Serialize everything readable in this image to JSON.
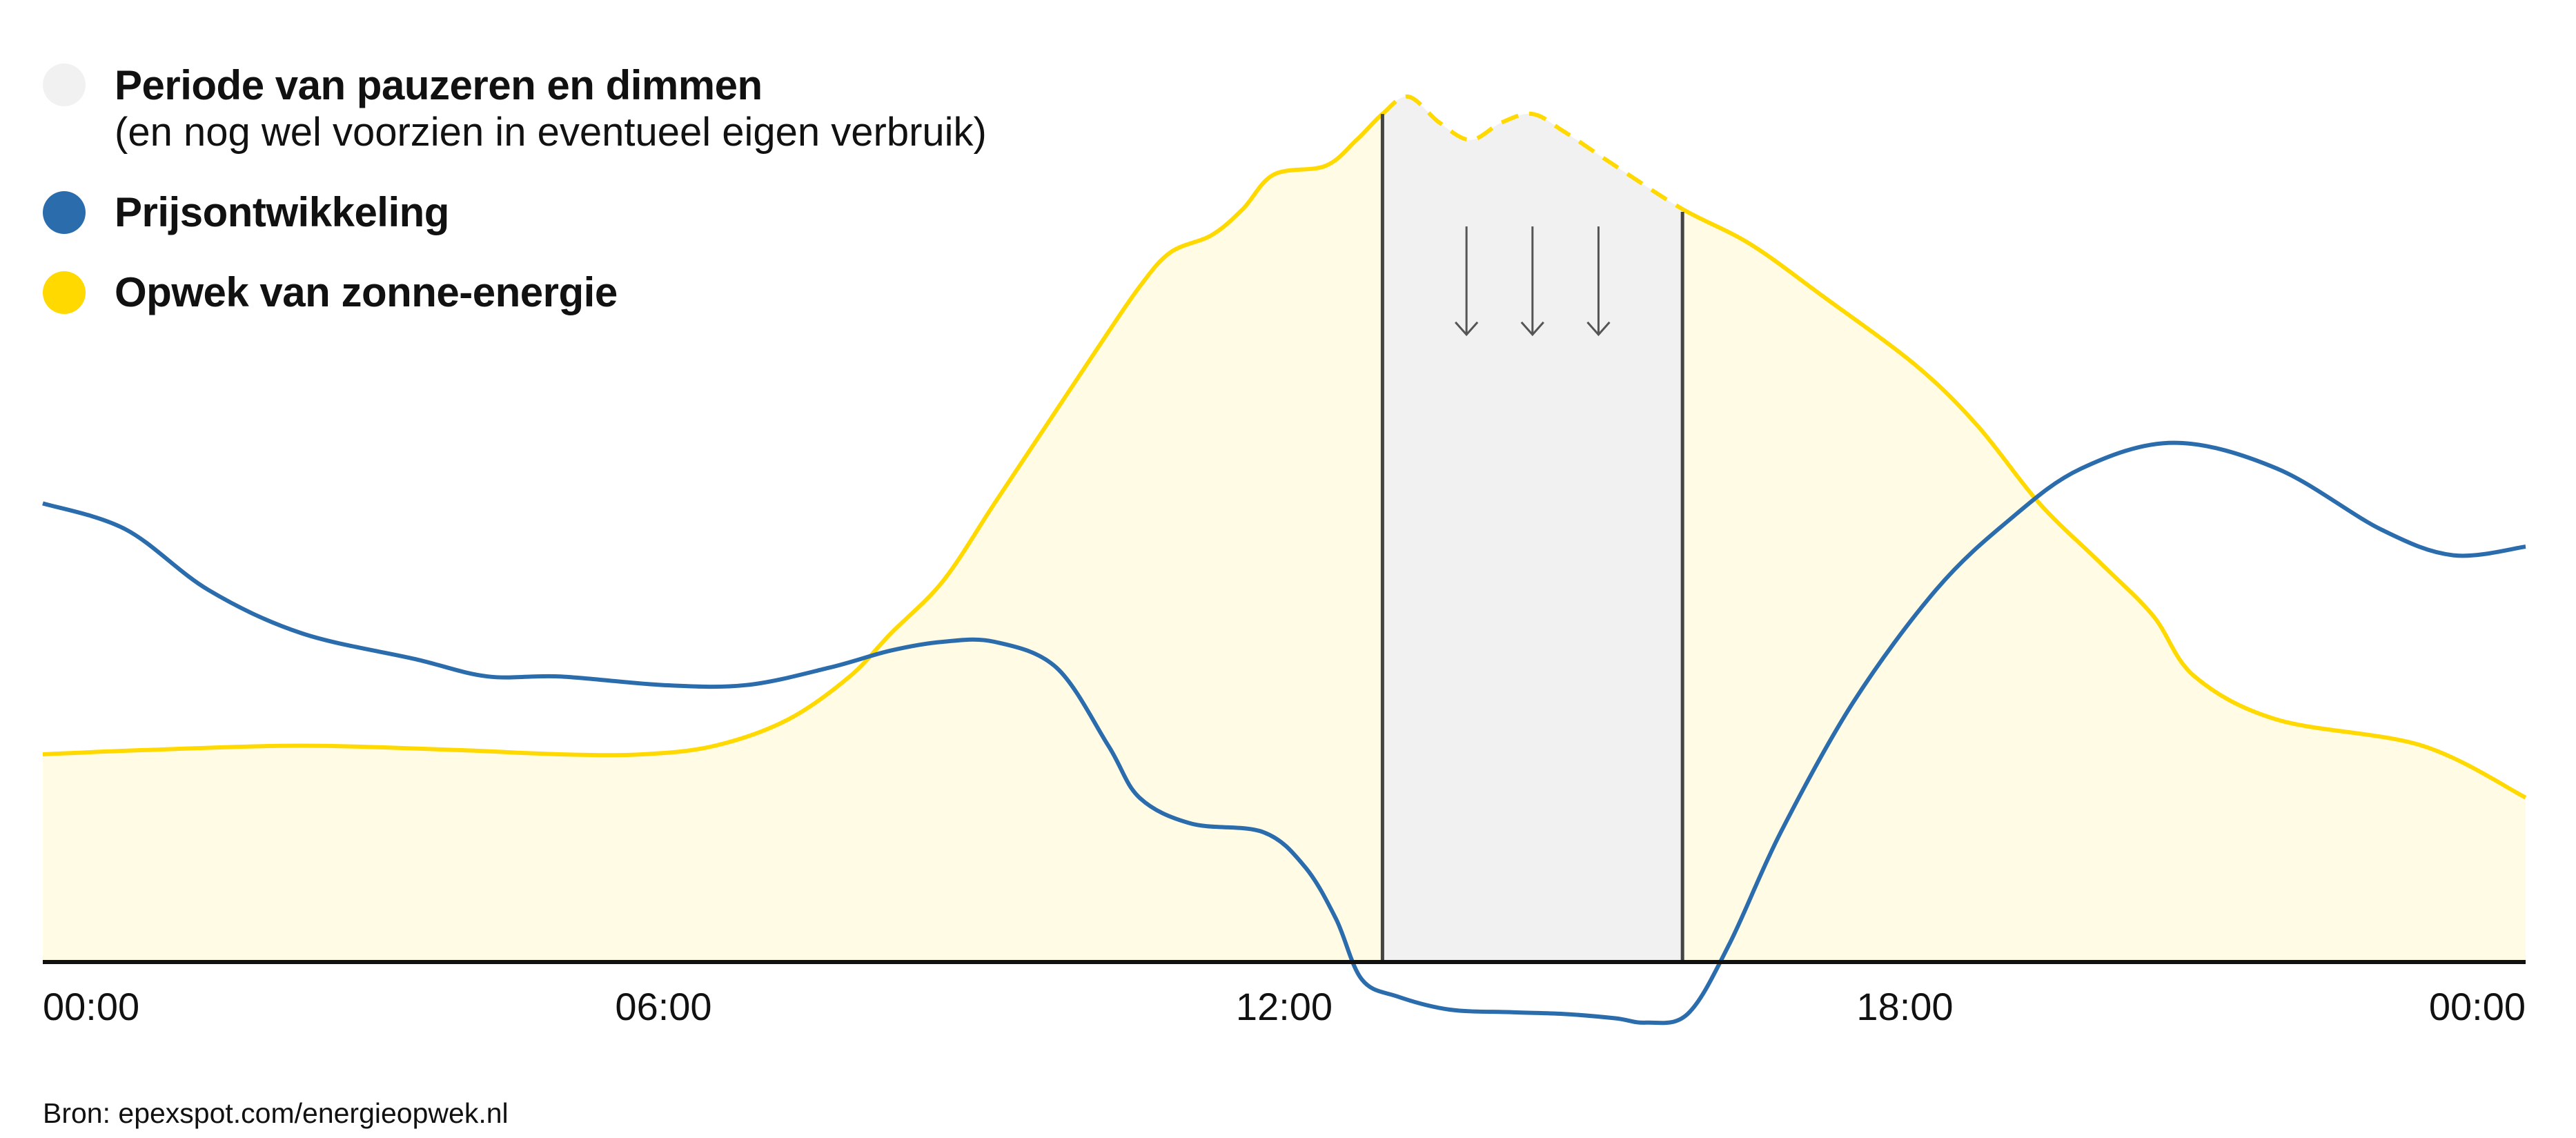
{
  "legend": [
    {
      "label": "Periode van pauzeren en dimmen",
      "sub": "(en nog wel voorzien in eventueel eigen verbruik)",
      "color": "#f1f1f1"
    },
    {
      "label": "Prijsontwikkeling",
      "color": "#2b6cad"
    },
    {
      "label": "Opwek van zonne-energie",
      "color": "#ffd900"
    }
  ],
  "source": "Bron: epexspot.com/energieopwek.nl",
  "chart_data": {
    "type": "area",
    "title": "",
    "xlabel": "",
    "ylabel": "",
    "x_axis": {
      "unit": "hours",
      "range": [
        0,
        24
      ],
      "ticks": [
        0,
        6,
        12,
        18,
        24
      ],
      "tick_labels": [
        "00:00",
        "06:00",
        "12:00",
        "18:00",
        "00:00"
      ]
    },
    "y_axis": {
      "range": [
        -0.1,
        1
      ],
      "visible": false,
      "note_scale": "relative"
    },
    "grid": false,
    "legend_position": "top-left",
    "highlight_band": {
      "x_start": 12.95,
      "x_end": 15.85,
      "label": "Periode van pauzeren en dimmen",
      "color": "#f1f1f1",
      "arrows": 3
    },
    "series": [
      {
        "name": "Opwek van zonne-energie",
        "type": "area",
        "color": "#ffd900",
        "fill": "#fffbe5",
        "dashed_between": [
          12.95,
          15.85
        ],
        "x": [
          0,
          1,
          2.5,
          4,
          5,
          5.8,
          6.5,
          7.2,
          7.8,
          8.2,
          8.7,
          9.2,
          9.7,
          10.2,
          10.6,
          10.9,
          11.3,
          11.6,
          11.9,
          12.4,
          12.7,
          12.95,
          13.2,
          13.5,
          13.8,
          14.1,
          14.4,
          14.7,
          15.2,
          15.85,
          16.5,
          17.2,
          18.1,
          18.7,
          19.3,
          19.9,
          20.4,
          20.8,
          21.6,
          23,
          24
        ],
        "y": [
          0.24,
          0.245,
          0.25,
          0.245,
          0.24,
          0.24,
          0.25,
          0.28,
          0.33,
          0.38,
          0.44,
          0.53,
          0.62,
          0.71,
          0.78,
          0.82,
          0.84,
          0.87,
          0.91,
          0.92,
          0.95,
          0.98,
          1.0,
          0.97,
          0.95,
          0.97,
          0.98,
          0.96,
          0.92,
          0.87,
          0.83,
          0.77,
          0.69,
          0.62,
          0.53,
          0.46,
          0.4,
          0.33,
          0.28,
          0.25,
          0.19
        ]
      },
      {
        "name": "Prijsontwikkeling",
        "type": "line",
        "color": "#2b6cad",
        "x": [
          0,
          0.8,
          1.6,
          2.5,
          3.6,
          4.3,
          5,
          6,
          6.8,
          7.6,
          8.2,
          8.7,
          9.2,
          9.8,
          10.3,
          10.6,
          11.1,
          11.8,
          12.2,
          12.5,
          12.75,
          13.1,
          13.6,
          14.2,
          14.7,
          15.2,
          15.5,
          15.9,
          16.3,
          16.8,
          17.5,
          18.3,
          19,
          19.7,
          20.6,
          21.6,
          22.6,
          23.3,
          24
        ],
        "y": [
          0.53,
          0.5,
          0.43,
          0.38,
          0.35,
          0.33,
          0.33,
          0.32,
          0.32,
          0.34,
          0.36,
          0.37,
          0.37,
          0.34,
          0.25,
          0.19,
          0.16,
          0.15,
          0.11,
          0.05,
          -0.02,
          -0.04,
          -0.055,
          -0.058,
          -0.06,
          -0.065,
          -0.07,
          -0.06,
          0.02,
          0.15,
          0.3,
          0.43,
          0.51,
          0.57,
          0.6,
          0.57,
          0.5,
          0.47,
          0.48
        ]
      }
    ]
  }
}
